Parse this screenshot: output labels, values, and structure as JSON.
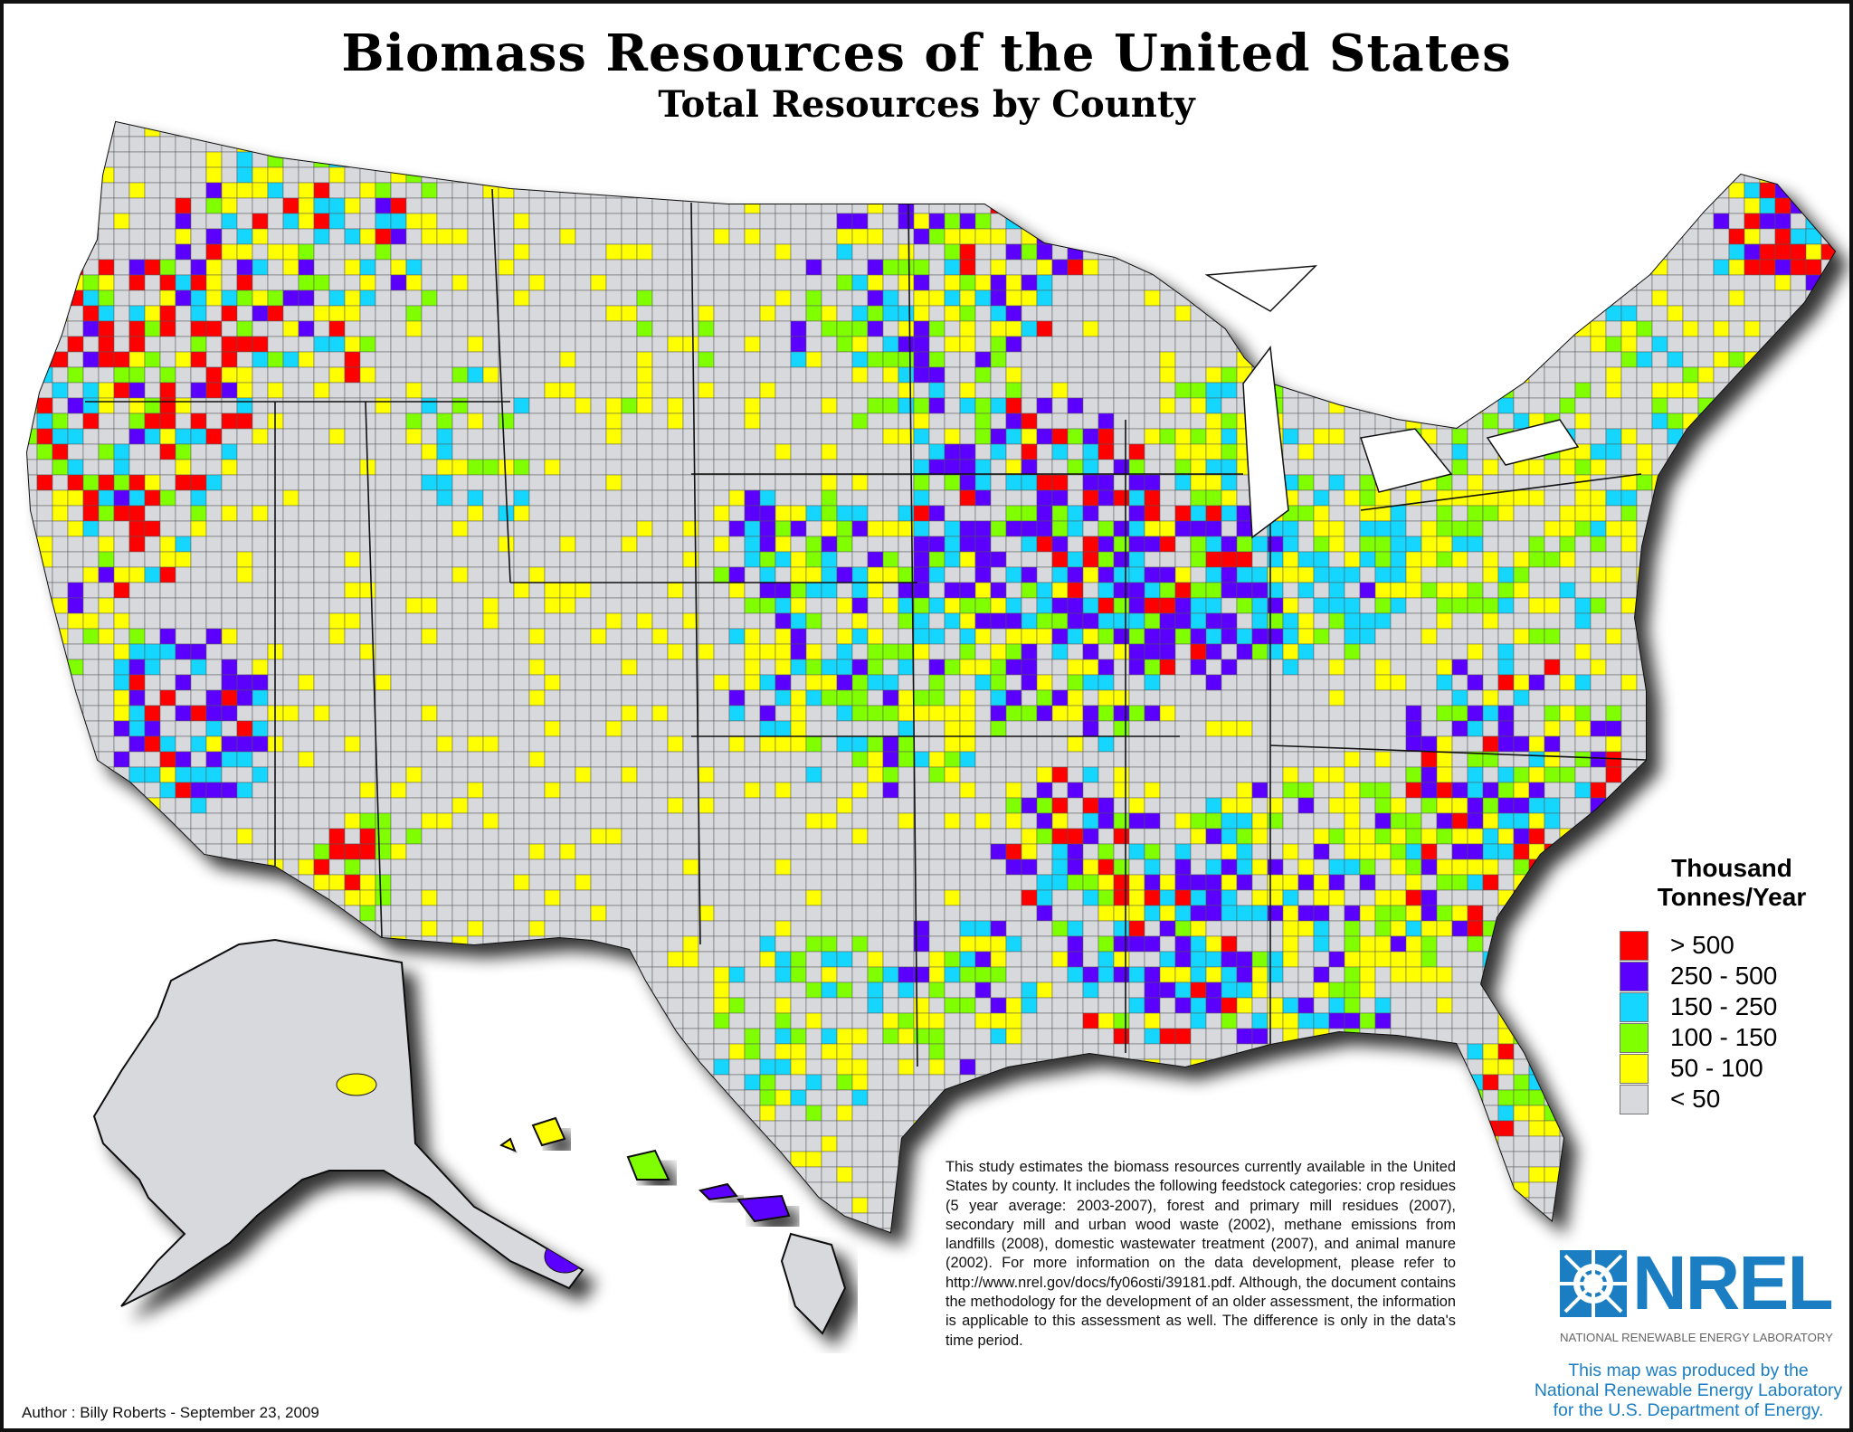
{
  "title": "Biomass Resources of the United States",
  "subtitle": "Total Resources by County",
  "legend": {
    "title_line1": "Thousand",
    "title_line2": "Tonnes/Year",
    "classes": [
      {
        "label": "> 500",
        "color": "#ff0000"
      },
      {
        "label": "250 - 500",
        "color": "#5b00ff"
      },
      {
        "label": "150 - 250",
        "color": "#14d6ff"
      },
      {
        "label": "100 - 150",
        "color": "#80ff00"
      },
      {
        "label": "50 - 100",
        "color": "#ffff00"
      },
      {
        "label": "< 50",
        "color": "#d8d9dd"
      }
    ]
  },
  "note": "This study estimates the biomass resources currently available in the United States by county. It includes the following feedstock categories: crop residues (5 year average: 2003-2007), forest and primary mill residues (2007), secondary mill and urban wood waste (2002), methane emissions from landfills (2008), domestic wastewater treatment (2007), and animal manure (2002). For more information on the data development, please refer to http://www.nrel.gov/docs/fy06osti/39181.pdf. Although, the document contains the methodology for the development of an older assessment, the information is applicable to this assessment as well. The difference is only in the data's time period.",
  "logo": {
    "name": "NREL",
    "subtitle": "NATIONAL RENEWABLE ENERGY LABORATORY",
    "color": "#1b7ec3"
  },
  "produced_by": {
    "line1": "This map was produced by the",
    "line2": "National Renewable Energy Laboratory",
    "line3": "for the U.S. Department of Energy."
  },
  "author": "Author : Billy Roberts - September 23, 2009"
}
